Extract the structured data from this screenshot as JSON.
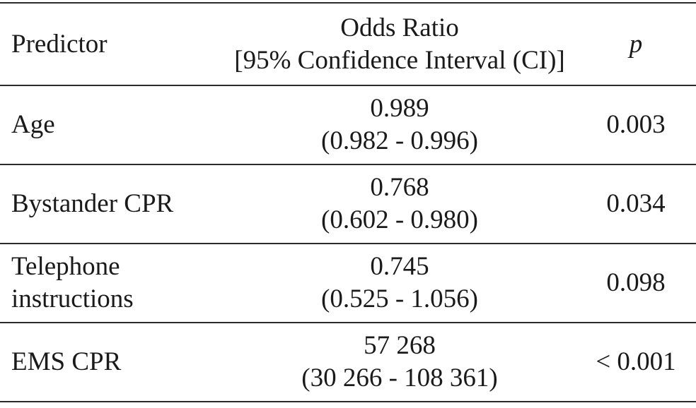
{
  "header": {
    "predictor": "Predictor",
    "odds_ratio_line1": "Odds Ratio",
    "odds_ratio_line2": "[95% Confidence Interval (CI)]",
    "p": "p"
  },
  "rows": [
    {
      "predictor_line1": "Age",
      "predictor_line2": "",
      "or": "0.989",
      "ci": "(0.982 - 0.996)",
      "p": "0.003"
    },
    {
      "predictor_line1": "Bystander CPR",
      "predictor_line2": "",
      "or": "0.768",
      "ci": "(0.602 - 0.980)",
      "p": "0.034"
    },
    {
      "predictor_line1": "Telephone",
      "predictor_line2": "instructions",
      "or": "0.745",
      "ci": "(0.525 - 1.056)",
      "p": "0.098"
    },
    {
      "predictor_line1": "EMS CPR",
      "predictor_line2": "",
      "or": "57 268",
      "ci": "(30 266 - 108 361)",
      "p": "< 0.001"
    }
  ]
}
